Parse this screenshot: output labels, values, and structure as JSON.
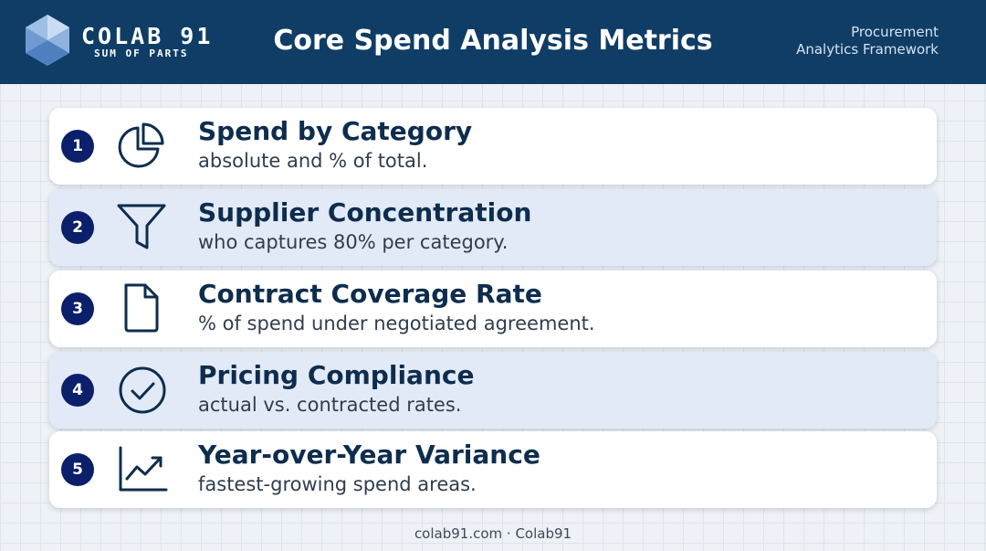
{
  "header": {
    "brand_name": "COLAB 91",
    "brand_tagline": "SUM OF PARTS",
    "title": "Core Spend Analysis Metrics",
    "note_line1": "Procurement",
    "note_line2": "Analytics Framework"
  },
  "metrics": [
    {
      "number": "1",
      "icon": "pie-chart-icon",
      "title": "Spend by Category",
      "description": "absolute and % of total."
    },
    {
      "number": "2",
      "icon": "funnel-icon",
      "title": "Supplier Concentration",
      "description": "who captures 80% per category."
    },
    {
      "number": "3",
      "icon": "document-icon",
      "title": "Contract Coverage Rate",
      "description": "% of spend under negotiated agreement."
    },
    {
      "number": "4",
      "icon": "check-circle-icon",
      "title": "Pricing Compliance",
      "description": "actual vs. contracted rates."
    },
    {
      "number": "5",
      "icon": "trend-chart-icon",
      "title": "Year-over-Year Variance",
      "description": "fastest-growing spend areas."
    }
  ],
  "footer": {
    "text": "colab91.com · Colab91"
  },
  "colors": {
    "header_bg": "#0f3d66",
    "badge": "#0b1f6b",
    "title_text": "#0e2d4e",
    "card_tint": "#e2eaf7"
  }
}
